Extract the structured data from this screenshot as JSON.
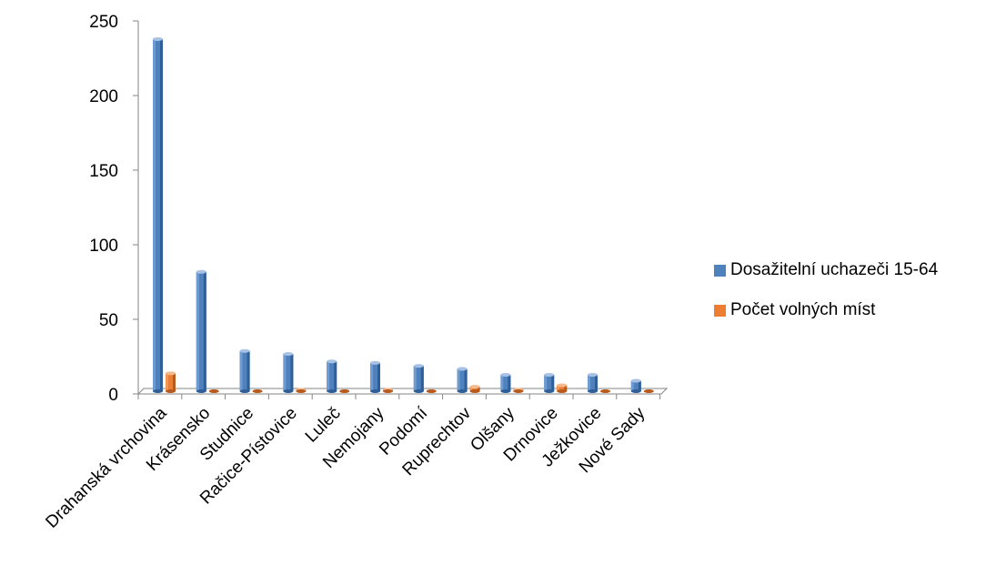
{
  "chart_data": {
    "type": "bar",
    "title": "",
    "xlabel": "",
    "ylabel": "",
    "ylim": [
      0,
      250
    ],
    "yticks": [
      0,
      50,
      100,
      150,
      200,
      250
    ],
    "grid": false,
    "legend_position": "right",
    "categories": [
      "Drahanská vrchovina",
      "Krásensko",
      "Studnice",
      "Račice-Pístovice",
      "Luleč",
      "Nemojany",
      "Podomí",
      "Ruprechtov",
      "Olšany",
      "Drnovice",
      "Ježkovice",
      "Nové Sady"
    ],
    "series": [
      {
        "name": "Dosažitelní uchazeči 15-64",
        "color": "#4F81BD",
        "values": [
          236,
          80,
          27,
          25,
          20,
          19,
          17,
          15,
          11,
          11,
          11,
          7
        ]
      },
      {
        "name": "Počet volných míst",
        "color": "#ED7D31",
        "values": [
          12,
          0,
          0,
          1,
          0,
          1,
          0,
          3,
          1,
          4,
          0,
          0
        ]
      }
    ]
  }
}
